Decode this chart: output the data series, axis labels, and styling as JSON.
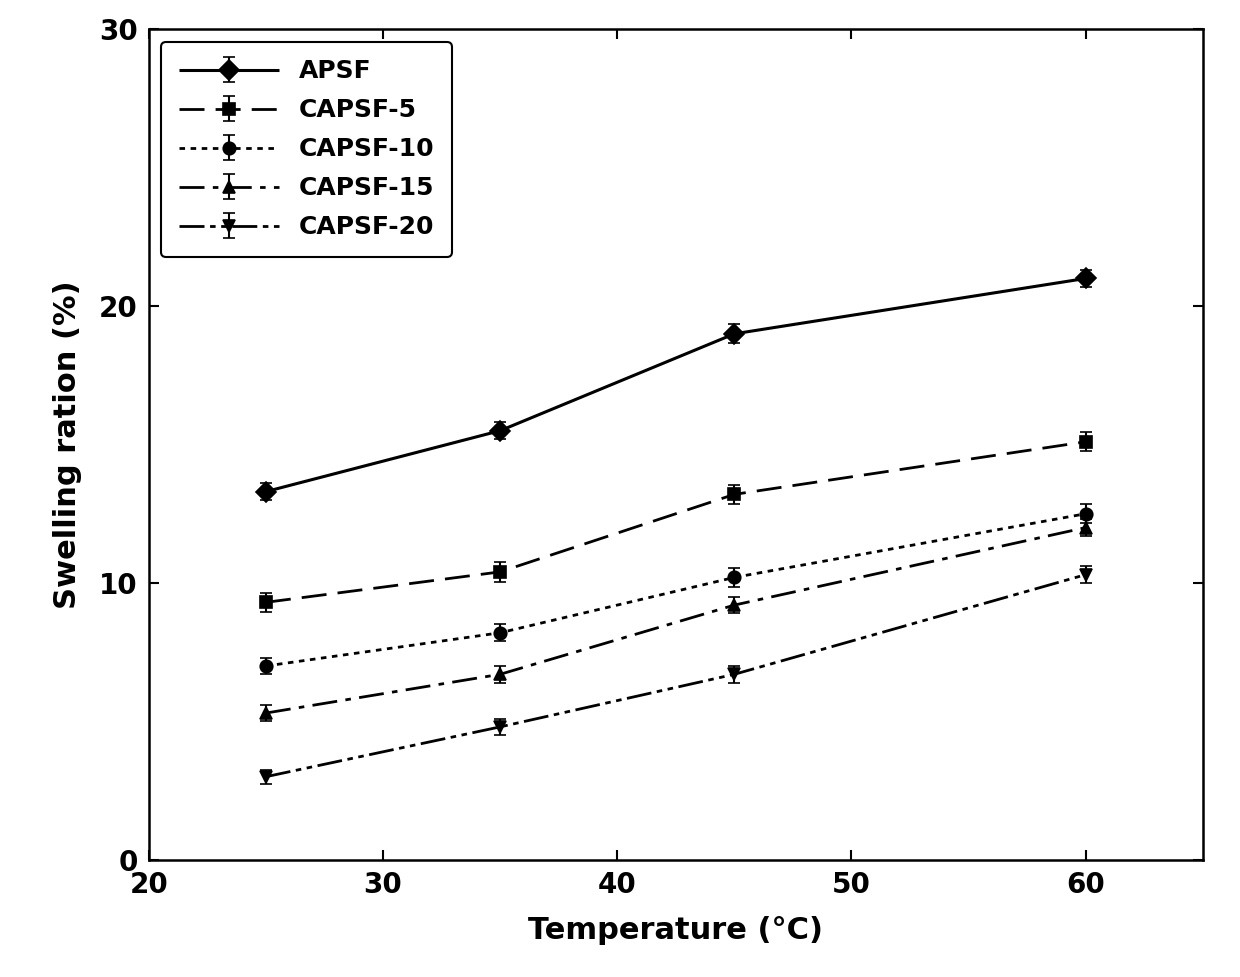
{
  "series": [
    {
      "label": "APSF",
      "x": [
        25,
        35,
        45,
        60
      ],
      "y": [
        13.3,
        15.5,
        19.0,
        21.0
      ],
      "yerr": [
        0.3,
        0.3,
        0.35,
        0.3
      ],
      "marker": "D",
      "markersize": 10,
      "linewidth": 2.2,
      "color": "black"
    },
    {
      "label": "CAPSF-5",
      "x": [
        25,
        35,
        45,
        60
      ],
      "y": [
        9.3,
        10.4,
        13.2,
        15.1
      ],
      "yerr": [
        0.35,
        0.35,
        0.35,
        0.35
      ],
      "marker": "s",
      "markersize": 9,
      "linewidth": 2.0,
      "color": "black"
    },
    {
      "label": "CAPSF-10",
      "x": [
        25,
        35,
        45,
        60
      ],
      "y": [
        7.0,
        8.2,
        10.2,
        12.5
      ],
      "yerr": [
        0.3,
        0.3,
        0.35,
        0.35
      ],
      "marker": "o",
      "markersize": 9,
      "linewidth": 2.0,
      "color": "black"
    },
    {
      "label": "CAPSF-15",
      "x": [
        25,
        35,
        45,
        60
      ],
      "y": [
        5.3,
        6.7,
        9.2,
        12.0
      ],
      "yerr": [
        0.3,
        0.3,
        0.3,
        0.3
      ],
      "marker": "^",
      "markersize": 9,
      "linewidth": 2.0,
      "color": "black"
    },
    {
      "label": "CAPSF-20",
      "x": [
        25,
        35,
        45,
        60
      ],
      "y": [
        3.0,
        4.8,
        6.7,
        10.3
      ],
      "yerr": [
        0.25,
        0.3,
        0.3,
        0.3
      ],
      "marker": "v",
      "markersize": 9,
      "linewidth": 2.0,
      "color": "black"
    }
  ],
  "xlabel": "Temperature (°C)",
  "ylabel": "Swelling ration (%)",
  "xlim": [
    20,
    65
  ],
  "ylim": [
    0,
    30
  ],
  "xticks": [
    20,
    30,
    40,
    50,
    60
  ],
  "yticks": [
    0,
    10,
    20,
    30
  ],
  "axis_label_fontsize": 22,
  "tick_fontsize": 20,
  "legend_fontsize": 18,
  "background_color": "#ffffff"
}
